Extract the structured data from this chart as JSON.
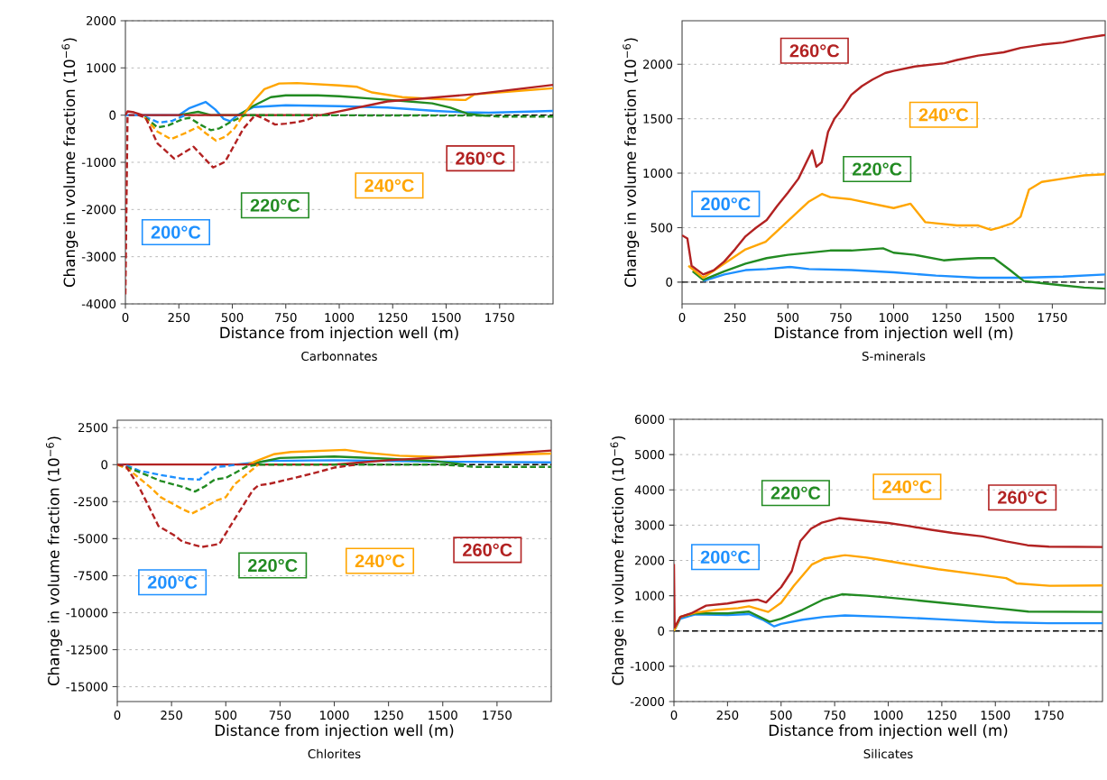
{
  "chart_data": [
    {
      "type": "line",
      "subtitle": "Carbonnates",
      "xlabel": "Distance from injection well (m)",
      "ylabel": "Change in volume fraction (10$^{−6}$)",
      "xlim": [
        0,
        2000
      ],
      "xticks": [
        0,
        250,
        500,
        750,
        1000,
        1250,
        1500,
        1750
      ],
      "ylim": [
        -4000,
        2000
      ],
      "yticks": [
        -4000,
        -3000,
        -2000,
        -1000,
        0,
        1000,
        2000
      ],
      "grid": "y",
      "ref_lines": [
        {
          "axis": "y",
          "value": 0,
          "color": "#000000",
          "line_style": "dashed"
        }
      ],
      "series": [
        {
          "name": "200°C",
          "color": "#1e90ff",
          "line_style": "solid",
          "x": [
            0,
            250,
            300,
            375,
            420,
            460,
            490,
            525,
            600,
            750,
            1000,
            1225,
            1450,
            1576,
            1700,
            2000
          ],
          "values": [
            0,
            0,
            150,
            280,
            120,
            -80,
            -130,
            0,
            170,
            210,
            190,
            160,
            90,
            60,
            50,
            90
          ]
        },
        {
          "color": "#1e90ff",
          "line_style": "dashed",
          "x": [
            90,
            157,
            220,
            280
          ],
          "values": [
            -30,
            -160,
            -120,
            0
          ]
        },
        {
          "name": "220°C",
          "color": "#228b22",
          "line_style": "solid",
          "x": [
            250,
            300,
            340,
            400,
            530,
            600,
            680,
            750,
            900,
            1000,
            1150,
            1300,
            1435,
            1520,
            1600,
            1680
          ],
          "values": [
            0,
            40,
            70,
            0,
            0,
            200,
            380,
            420,
            420,
            400,
            350,
            300,
            250,
            160,
            30,
            -10
          ]
        },
        {
          "color": "#228b22",
          "line_style": "dashed",
          "x": [
            90,
            150,
            200,
            270,
            300,
            350,
            400,
            440,
            490,
            560,
            1680,
            1750,
            2000
          ],
          "values": [
            -40,
            -260,
            -220,
            -80,
            -60,
            -200,
            -320,
            -280,
            -150,
            0,
            -10,
            -30,
            -30
          ]
        },
        {
          "name": "240°C",
          "color": "#ffa500",
          "line_style": "solid",
          "x": [
            551,
            600,
            650,
            719,
            803,
            1000,
            1084,
            1154,
            1295,
            1450,
            1590,
            1632,
            1800,
            2000
          ],
          "values": [
            0,
            300,
            550,
            670,
            680,
            630,
            600,
            480,
            380,
            340,
            320,
            440,
            500,
            570
          ]
        },
        {
          "color": "#ffa500",
          "line_style": "dashed",
          "x": [
            90,
            150,
            213,
            280,
            340,
            380,
            424,
            470,
            510,
            551
          ],
          "values": [
            -50,
            -350,
            -510,
            -380,
            -250,
            -400,
            -540,
            -450,
            -280,
            0
          ]
        },
        {
          "name": "260°C",
          "color": "#b22222",
          "line_style": "solid",
          "x": [
            0,
            10,
            40,
            80,
            916,
            1225,
            1646,
            2000
          ],
          "values": [
            0,
            80,
            60,
            0,
            0,
            290,
            450,
            640
          ]
        },
        {
          "color": "#b22222",
          "line_style": "dashed",
          "x": [
            0,
            10,
            60,
            94,
            150,
            228,
            319,
            410,
            466,
            551,
            607,
            650,
            700,
            750,
            800,
            850,
            900
          ],
          "values": [
            -3800,
            0,
            0,
            -50,
            -600,
            -920,
            -670,
            -1110,
            -990,
            -290,
            0,
            -80,
            -200,
            -180,
            -150,
            -100,
            0
          ]
        }
      ]
    },
    {
      "type": "line",
      "subtitle": "S-minerals",
      "xlabel": "Distance from injection well (m)",
      "ylabel": "Change in volume fraction (10$^{−6}$)",
      "xlim": [
        0,
        2000
      ],
      "xticks": [
        0,
        250,
        500,
        750,
        1000,
        1250,
        1500,
        1750
      ],
      "ylim": [
        -200,
        2400
      ],
      "yticks": [
        0,
        500,
        1000,
        1500,
        2000
      ],
      "grid": "y",
      "ref_lines": [
        {
          "axis": "y",
          "value": 0,
          "color": "#000000",
          "line_style": "dashed"
        }
      ],
      "series": [
        {
          "name": "200°C",
          "color": "#1e90ff",
          "line_style": "solid",
          "x": [
            100,
            200,
            300,
            400,
            510,
            600,
            800,
            1000,
            1200,
            1400,
            1600,
            1800,
            2000
          ],
          "values": [
            10,
            70,
            110,
            120,
            140,
            120,
            110,
            90,
            60,
            40,
            40,
            50,
            70
          ]
        },
        {
          "name": "220°C",
          "color": "#228b22",
          "line_style": "solid",
          "x": [
            50,
            100,
            200,
            300,
            400,
            500,
            600,
            700,
            800,
            950,
            1000,
            1100,
            1236,
            1300,
            1400,
            1475,
            1550,
            1615,
            1700,
            1800,
            1900,
            2000
          ],
          "values": [
            100,
            20,
            100,
            170,
            220,
            250,
            270,
            290,
            290,
            310,
            270,
            250,
            200,
            210,
            220,
            220,
            110,
            10,
            -10,
            -30,
            -50,
            -60
          ]
        },
        {
          "name": "240°C",
          "color": "#ffa500",
          "line_style": "solid",
          "x": [
            30,
            100,
            200,
            300,
            395,
            500,
            600,
            662,
            700,
            800,
            900,
            1000,
            1080,
            1150,
            1200,
            1300,
            1400,
            1460,
            1500,
            1560,
            1600,
            1640,
            1700,
            1800,
            1900,
            2000
          ],
          "values": [
            150,
            40,
            170,
            300,
            370,
            560,
            740,
            810,
            780,
            760,
            720,
            680,
            720,
            550,
            540,
            520,
            520,
            480,
            500,
            540,
            600,
            850,
            920,
            950,
            980,
            990
          ]
        },
        {
          "name": "260°C",
          "color": "#b22222",
          "line_style": "solid",
          "x": [
            0,
            25,
            45,
            100,
            150,
            200,
            250,
            300,
            350,
            400,
            450,
            500,
            550,
            600,
            615,
            635,
            660,
            690,
            720,
            760,
            800,
            850,
            900,
            960,
            1000,
            1100,
            1240,
            1300,
            1400,
            1520,
            1600,
            1700,
            1800,
            1900,
            2000
          ],
          "values": [
            430,
            400,
            150,
            70,
            110,
            190,
            300,
            420,
            500,
            570,
            700,
            820,
            950,
            1150,
            1210,
            1060,
            1100,
            1380,
            1500,
            1600,
            1720,
            1800,
            1860,
            1920,
            1940,
            1980,
            2010,
            2040,
            2080,
            2110,
            2150,
            2180,
            2200,
            2240,
            2270
          ]
        }
      ]
    },
    {
      "type": "line",
      "subtitle": "Chlorites",
      "xlabel": "Distance from injection well (m)",
      "ylabel": "Change in volume fraction (10$^{−6}$)",
      "xlim": [
        0,
        2000
      ],
      "xticks": [
        0,
        250,
        500,
        750,
        1000,
        1250,
        1500,
        1750
      ],
      "ylim": [
        -16000,
        3000
      ],
      "yticks": [
        -15000,
        -12500,
        -10000,
        -7500,
        -5000,
        -2500,
        0,
        2500
      ],
      "grid": "y",
      "ref_lines": [
        {
          "axis": "y",
          "value": 0,
          "color": "#000000",
          "line_style": "dashed"
        }
      ],
      "series": [
        {
          "name": "200°C",
          "color": "#1e90ff",
          "line_style": "solid",
          "x": [
            550,
            700,
            1000,
            1500,
            2000
          ],
          "values": [
            0,
            250,
            300,
            200,
            150
          ]
        },
        {
          "color": "#1e90ff",
          "line_style": "dashed",
          "x": [
            0,
            50,
            100,
            200,
            300,
            379,
            400,
            456,
            500,
            550
          ],
          "values": [
            0,
            -100,
            -400,
            -700,
            -950,
            -1010,
            -700,
            -160,
            -100,
            0
          ]
        },
        {
          "name": "220°C",
          "color": "#228b22",
          "line_style": "solid",
          "x": [
            600,
            750,
            1000,
            1250,
            1450,
            1550,
            1600
          ],
          "values": [
            0,
            450,
            550,
            400,
            250,
            100,
            0
          ]
        },
        {
          "color": "#228b22",
          "line_style": "dashed",
          "x": [
            0,
            50,
            100,
            200,
            300,
            358,
            400,
            450,
            500,
            550,
            600,
            650,
            1500,
            1650,
            2000
          ],
          "values": [
            0,
            -200,
            -500,
            -1100,
            -1500,
            -1820,
            -1500,
            -1000,
            -900,
            -500,
            -100,
            0,
            0,
            -150,
            -150
          ]
        },
        {
          "name": "240°C",
          "color": "#ffa500",
          "line_style": "solid",
          "x": [
            600,
            650,
            720,
            800,
            1050,
            1150,
            1300,
            1500,
            1750,
            2000
          ],
          "values": [
            0,
            300,
            700,
            850,
            1000,
            800,
            600,
            500,
            650,
            750
          ]
        },
        {
          "color": "#ffa500",
          "line_style": "dashed",
          "x": [
            0,
            50,
            100,
            150,
            200,
            300,
            344,
            400,
            456,
            500,
            541,
            600,
            650
          ],
          "values": [
            0,
            -300,
            -900,
            -1500,
            -2200,
            -3000,
            -3300,
            -2900,
            -2430,
            -2200,
            -1320,
            -600,
            0
          ]
        },
        {
          "name": "260°C",
          "color": "#b22222",
          "line_style": "solid",
          "x": [
            0,
            1000,
            1250,
            1500,
            1750,
            2000
          ],
          "values": [
            0,
            0,
            300,
            500,
            700,
            950
          ]
        },
        {
          "color": "#b22222",
          "line_style": "dashed",
          "x": [
            0,
            40,
            100,
            190,
            260,
            300,
            390,
            470,
            555,
            625,
            650,
            700,
            800,
            900,
            1000,
            1100
          ],
          "values": [
            0,
            -100,
            -1500,
            -4150,
            -4750,
            -5200,
            -5560,
            -5360,
            -3340,
            -1720,
            -1400,
            -1300,
            -950,
            -600,
            -200,
            0
          ]
        }
      ]
    },
    {
      "type": "line",
      "subtitle": "Silicates",
      "xlabel": "Distance from injection well (m)",
      "ylabel": "Change in volume fraction (10$^{−6}$)",
      "xlim": [
        0,
        2000
      ],
      "xticks": [
        0,
        250,
        500,
        750,
        1000,
        1250,
        1500,
        1750
      ],
      "ylim": [
        -2000,
        6000
      ],
      "yticks": [
        -2000,
        -1000,
        0,
        1000,
        2000,
        3000,
        4000,
        5000,
        6000
      ],
      "grid": "y",
      "ref_lines": [
        {
          "axis": "y",
          "value": 0,
          "color": "#000000",
          "line_style": "dashed"
        }
      ],
      "series": [
        {
          "name": "200°C",
          "color": "#1e90ff",
          "line_style": "solid",
          "x": [
            0,
            30,
            100,
            250,
            350,
            420,
            468,
            500,
            600,
            700,
            798,
            1000,
            1250,
            1500,
            1750,
            2000
          ],
          "values": [
            0,
            350,
            470,
            450,
            480,
            300,
            130,
            200,
            320,
            400,
            440,
            400,
            330,
            250,
            220,
            220
          ]
        },
        {
          "name": "220°C",
          "color": "#228b22",
          "line_style": "solid",
          "x": [
            0,
            30,
            100,
            250,
            350,
            447,
            500,
            600,
            700,
            784,
            900,
            1000,
            1250,
            1500,
            1654,
            2000
          ],
          "values": [
            0,
            400,
            500,
            500,
            550,
            260,
            350,
            600,
            900,
            1040,
            1000,
            950,
            800,
            650,
            550,
            540
          ]
        },
        {
          "name": "240°C",
          "color": "#ffa500",
          "line_style": "solid",
          "x": [
            0,
            30,
            100,
            200,
            300,
            350,
            440,
            500,
            559,
            643,
            700,
            798,
            900,
            1000,
            1233,
            1400,
            1550,
            1598,
            1753,
            2000
          ],
          "values": [
            0,
            400,
            520,
            600,
            650,
            700,
            540,
            800,
            1280,
            1880,
            2050,
            2150,
            2080,
            1980,
            1750,
            1620,
            1500,
            1350,
            1280,
            1290
          ]
        },
        {
          "name": "260°C",
          "color": "#b22222",
          "line_style": "solid",
          "x": [
            0,
            3,
            30,
            80,
            150,
            250,
            300,
            390,
            430,
            500,
            550,
            590,
            640,
            690,
            770,
            900,
            1000,
            1090,
            1200,
            1300,
            1440,
            1550,
            1650,
            1750,
            2000
          ],
          "values": [
            1900,
            100,
            400,
            500,
            720,
            780,
            830,
            890,
            810,
            1240,
            1700,
            2550,
            2900,
            3070,
            3200,
            3120,
            3060,
            2980,
            2870,
            2780,
            2680,
            2540,
            2430,
            2390,
            2380
          ]
        }
      ]
    }
  ]
}
